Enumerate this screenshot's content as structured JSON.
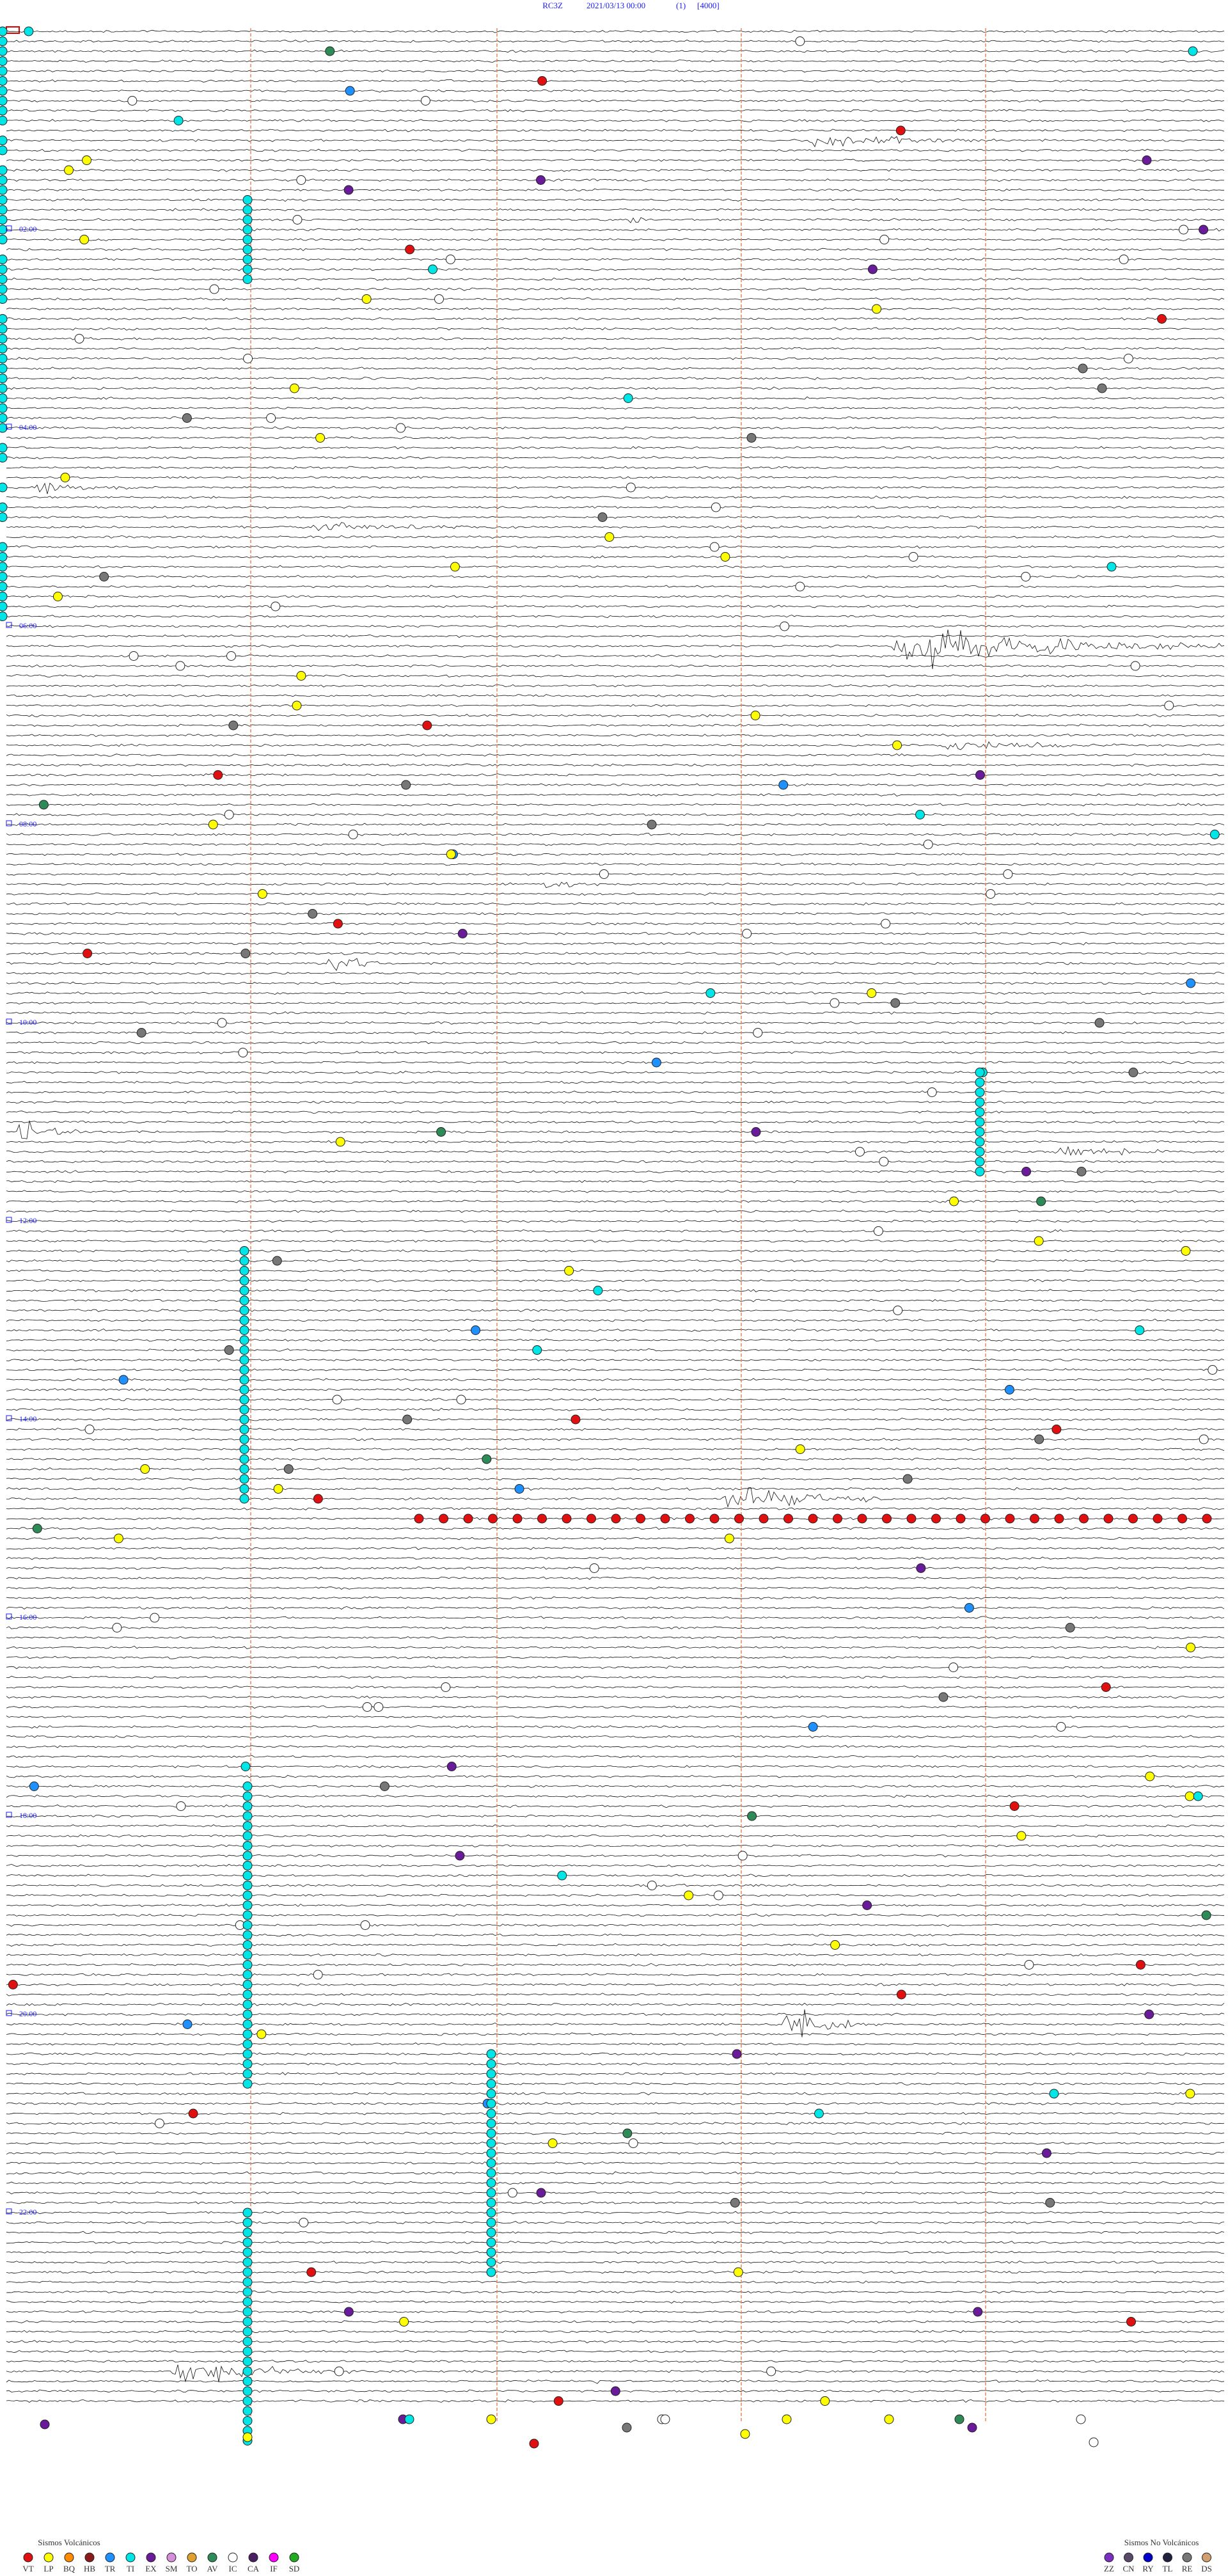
{
  "header": {
    "station": "RC3Z",
    "datetime": "2021/03/13 00:00",
    "index": "(1)",
    "scale": "[4000]"
  },
  "hour_labels": [
    "02:00",
    "04:00",
    "06:00",
    "08:00",
    "10:00",
    "12:00",
    "14:00",
    "16:00",
    "18:00",
    "20:00",
    "22:00"
  ],
  "legend_volcanic": {
    "title": "Sismos Volcánicos",
    "items": [
      {
        "code": "VT",
        "color": "#e01010"
      },
      {
        "code": "LP",
        "color": "#ffff00"
      },
      {
        "code": "BQ",
        "color": "#ff8c00"
      },
      {
        "code": "HB",
        "color": "#8b1a1a"
      },
      {
        "code": "TR",
        "color": "#1e90ff"
      },
      {
        "code": "TI",
        "color": "#00e5e5"
      },
      {
        "code": "EX",
        "color": "#6a1b9a"
      },
      {
        "code": "SM",
        "color": "#d58fd8"
      },
      {
        "code": "TO",
        "color": "#e0a030"
      },
      {
        "code": "AV",
        "color": "#2e8b57"
      },
      {
        "code": "IC",
        "color": "#ffffff"
      },
      {
        "code": "CA",
        "color": "#4b2060"
      },
      {
        "code": "IF",
        "color": "#ff00ff"
      },
      {
        "code": "SD",
        "color": "#22aa22"
      }
    ]
  },
  "legend_nonvolcanic": {
    "title": "Sismos No Volcánicos",
    "items": [
      {
        "code": "ZZ",
        "color": "#7b2fbe"
      },
      {
        "code": "CN",
        "color": "#5a4a6a"
      },
      {
        "code": "RY",
        "color": "#0000cc"
      },
      {
        "code": "TL",
        "color": "#202040"
      },
      {
        "code": "RE",
        "color": "#777777"
      },
      {
        "code": "DS",
        "color": "#d2a070"
      }
    ]
  }
}
